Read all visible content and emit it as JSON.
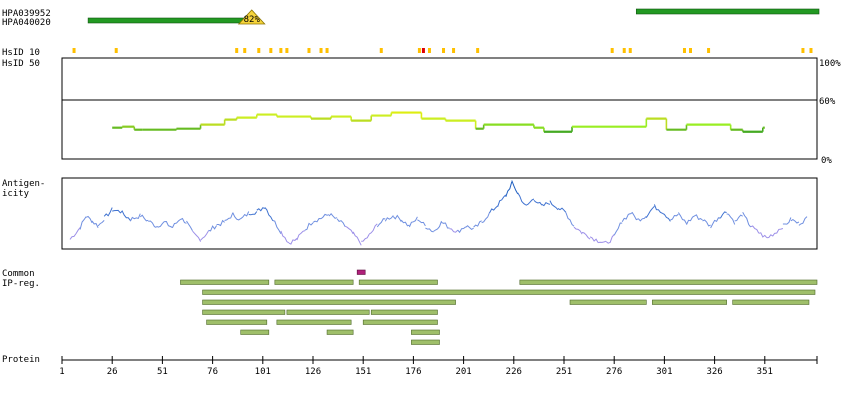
{
  "antibodies": [
    {
      "name": "HPA039952",
      "start": 287,
      "end": 378
    },
    {
      "name": "HPA040020",
      "start": 14,
      "end": 95,
      "badge": "82%"
    }
  ],
  "hsid": {
    "label_10": "HsID 10",
    "label_50": "HsID 50",
    "marks": [
      7,
      28,
      88,
      92,
      99,
      105,
      110,
      113,
      124,
      130,
      133,
      160,
      179,
      181,
      184,
      191,
      196,
      208,
      275,
      281,
      284,
      311,
      314,
      323,
      370,
      374
    ],
    "red_marks": [
      181
    ],
    "normal_color": "#ffc000",
    "red_color": "#e00000"
  },
  "conservation": {
    "labels": {
      "top": "100%",
      "mid": "60%",
      "bottom": "0%"
    },
    "threshold": 60,
    "segments": [
      {
        "start": 26,
        "end": 31,
        "value": 31,
        "color": "#66bb22"
      },
      {
        "start": 31,
        "end": 37,
        "value": 32,
        "color": "#88cc22"
      },
      {
        "start": 37,
        "end": 41,
        "value": 29,
        "color": "#66bb22"
      },
      {
        "start": 41,
        "end": 58,
        "value": 29,
        "color": "#66bb22"
      },
      {
        "start": 58,
        "end": 70,
        "value": 30,
        "color": "#66bb22"
      },
      {
        "start": 70,
        "end": 82,
        "value": 34,
        "color": "#bbdd22"
      },
      {
        "start": 82,
        "end": 88,
        "value": 39,
        "color": "#bbdd22"
      },
      {
        "start": 88,
        "end": 98,
        "value": 41,
        "color": "#ccee22"
      },
      {
        "start": 98,
        "end": 108,
        "value": 44,
        "color": "#ccee22"
      },
      {
        "start": 108,
        "end": 125,
        "value": 42,
        "color": "#ccee22"
      },
      {
        "start": 125,
        "end": 135,
        "value": 40,
        "color": "#bbdd22"
      },
      {
        "start": 135,
        "end": 145,
        "value": 42,
        "color": "#ccee22"
      },
      {
        "start": 145,
        "end": 155,
        "value": 38,
        "color": "#bbdd22"
      },
      {
        "start": 155,
        "end": 165,
        "value": 43,
        "color": "#ccee22"
      },
      {
        "start": 165,
        "end": 180,
        "value": 46,
        "color": "#ddee11"
      },
      {
        "start": 180,
        "end": 192,
        "value": 40,
        "color": "#ccee22"
      },
      {
        "start": 192,
        "end": 207,
        "value": 38,
        "color": "#ccee22"
      },
      {
        "start": 207,
        "end": 211,
        "value": 30,
        "color": "#66bb22"
      },
      {
        "start": 211,
        "end": 236,
        "value": 34,
        "color": "#88dd22"
      },
      {
        "start": 236,
        "end": 241,
        "value": 31,
        "color": "#88dd22"
      },
      {
        "start": 241,
        "end": 255,
        "value": 27,
        "color": "#44aa22"
      },
      {
        "start": 255,
        "end": 292,
        "value": 32,
        "color": "#99ee22"
      },
      {
        "start": 292,
        "end": 302,
        "value": 40,
        "color": "#bbdd22"
      },
      {
        "start": 302,
        "end": 312,
        "value": 29,
        "color": "#66bb22"
      },
      {
        "start": 312,
        "end": 334,
        "value": 34,
        "color": "#99ee22"
      },
      {
        "start": 334,
        "end": 340,
        "value": 29,
        "color": "#66bb22"
      },
      {
        "start": 340,
        "end": 350,
        "value": 27,
        "color": "#44aa22"
      },
      {
        "start": 350,
        "end": 351,
        "value": 31,
        "color": "#66bb22"
      }
    ]
  },
  "antigenicity": {
    "label_line1": "Antigen-",
    "label_line2": "icity",
    "profile_points": [
      [
        5,
        0.1
      ],
      [
        10,
        0.28
      ],
      [
        13,
        0.45
      ],
      [
        16,
        0.38
      ],
      [
        19,
        0.3
      ],
      [
        22,
        0.42
      ],
      [
        26,
        0.55
      ],
      [
        30,
        0.52
      ],
      [
        35,
        0.4
      ],
      [
        40,
        0.46
      ],
      [
        44,
        0.38
      ],
      [
        48,
        0.3
      ],
      [
        52,
        0.36
      ],
      [
        56,
        0.28
      ],
      [
        60,
        0.42
      ],
      [
        63,
        0.36
      ],
      [
        66,
        0.2
      ],
      [
        70,
        0.1
      ],
      [
        74,
        0.22
      ],
      [
        78,
        0.32
      ],
      [
        82,
        0.36
      ],
      [
        86,
        0.48
      ],
      [
        90,
        0.4
      ],
      [
        94,
        0.5
      ],
      [
        98,
        0.52
      ],
      [
        102,
        0.6
      ],
      [
        106,
        0.4
      ],
      [
        110,
        0.22
      ],
      [
        114,
        0.05
      ],
      [
        118,
        0.1
      ],
      [
        122,
        0.25
      ],
      [
        126,
        0.38
      ],
      [
        130,
        0.42
      ],
      [
        134,
        0.48
      ],
      [
        138,
        0.4
      ],
      [
        142,
        0.3
      ],
      [
        146,
        0.18
      ],
      [
        150,
        0.04
      ],
      [
        154,
        0.16
      ],
      [
        158,
        0.32
      ],
      [
        162,
        0.4
      ],
      [
        166,
        0.46
      ],
      [
        170,
        0.4
      ],
      [
        174,
        0.3
      ],
      [
        178,
        0.42
      ],
      [
        182,
        0.3
      ],
      [
        186,
        0.22
      ],
      [
        190,
        0.36
      ],
      [
        194,
        0.28
      ],
      [
        198,
        0.22
      ],
      [
        202,
        0.3
      ],
      [
        206,
        0.26
      ],
      [
        210,
        0.36
      ],
      [
        214,
        0.5
      ],
      [
        218,
        0.62
      ],
      [
        222,
        0.76
      ],
      [
        225,
        0.96
      ],
      [
        228,
        0.8
      ],
      [
        232,
        0.6
      ],
      [
        236,
        0.72
      ],
      [
        240,
        0.6
      ],
      [
        244,
        0.66
      ],
      [
        248,
        0.58
      ],
      [
        252,
        0.5
      ],
      [
        256,
        0.3
      ],
      [
        260,
        0.2
      ],
      [
        264,
        0.14
      ],
      [
        268,
        0.08
      ],
      [
        272,
        0.04
      ],
      [
        276,
        0.14
      ],
      [
        280,
        0.38
      ],
      [
        284,
        0.5
      ],
      [
        288,
        0.4
      ],
      [
        292,
        0.46
      ],
      [
        296,
        0.6
      ],
      [
        300,
        0.52
      ],
      [
        304,
        0.4
      ],
      [
        308,
        0.48
      ],
      [
        312,
        0.34
      ],
      [
        316,
        0.46
      ],
      [
        320,
        0.4
      ],
      [
        324,
        0.3
      ],
      [
        328,
        0.44
      ],
      [
        332,
        0.52
      ],
      [
        336,
        0.36
      ],
      [
        340,
        0.48
      ],
      [
        344,
        0.3
      ],
      [
        348,
        0.2
      ],
      [
        352,
        0.12
      ],
      [
        356,
        0.2
      ],
      [
        360,
        0.3
      ],
      [
        364,
        0.4
      ],
      [
        368,
        0.34
      ],
      [
        372,
        0.42
      ]
    ]
  },
  "common_ip": {
    "label_line1": "Common",
    "label_line2": "IP-reg.",
    "marker": {
      "start": 148,
      "end": 152
    },
    "rows": [
      [
        {
          "start": 60,
          "end": 104
        },
        {
          "start": 107,
          "end": 146
        },
        {
          "start": 149,
          "end": 188
        },
        {
          "start": 229,
          "end": 377
        }
      ],
      [
        {
          "start": 71,
          "end": 376
        }
      ],
      [
        {
          "start": 71,
          "end": 197
        },
        {
          "start": 254,
          "end": 292
        },
        {
          "start": 295,
          "end": 332
        },
        {
          "start": 335,
          "end": 373
        }
      ],
      [
        {
          "start": 71,
          "end": 112
        },
        {
          "start": 113,
          "end": 154
        },
        {
          "start": 155,
          "end": 188
        }
      ],
      [
        {
          "start": 73,
          "end": 103
        },
        {
          "start": 108,
          "end": 145
        },
        {
          "start": 151,
          "end": 188
        }
      ],
      [
        {
          "start": 90,
          "end": 104
        },
        {
          "start": 133,
          "end": 146
        },
        {
          "start": 175,
          "end": 189
        }
      ],
      [
        {
          "start": 175,
          "end": 189
        }
      ]
    ]
  },
  "protein": {
    "label": "Protein",
    "length": 377,
    "ticks": [
      1,
      26,
      51,
      76,
      101,
      126,
      151,
      176,
      201,
      226,
      251,
      276,
      301,
      326,
      351
    ]
  }
}
